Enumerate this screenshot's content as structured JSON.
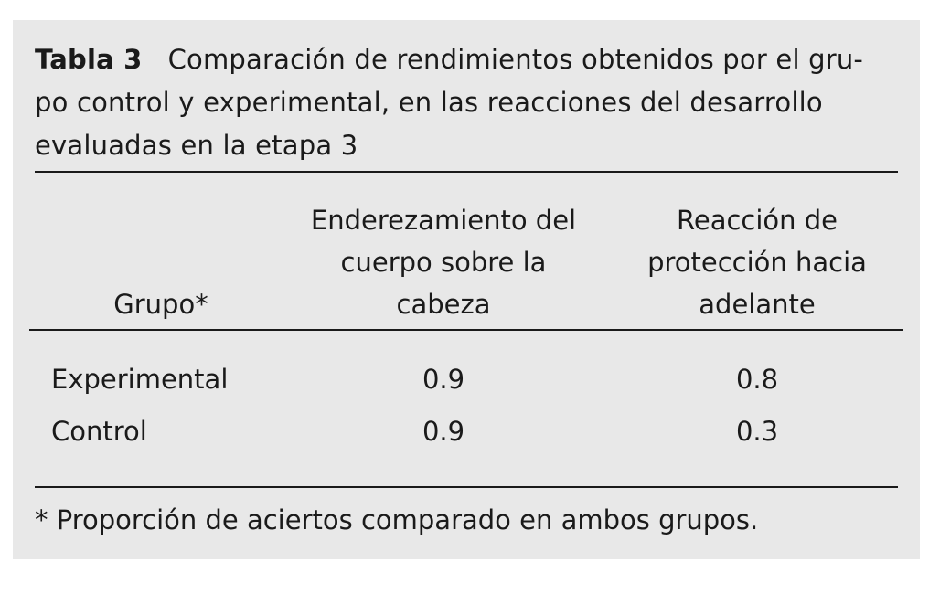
{
  "table": {
    "label": "Tabla 3",
    "caption": "Comparación de rendimientos obtenidos por el gru-po control y experimental, en las reacciones del desarrollo evaluadas en la etapa 3",
    "caption_lines": [
      "Comparación de rendimientos obtenidos por el gru-",
      "po control y experimental, en las reacciones del desarrollo",
      "evaluadas en la etapa 3"
    ],
    "columns": [
      {
        "lines": [
          "Grupo*"
        ]
      },
      {
        "lines": [
          "Enderezamiento del",
          "cuerpo sobre la",
          "cabeza"
        ]
      },
      {
        "lines": [
          "Reacción de",
          "protección hacia",
          "adelante"
        ]
      }
    ],
    "rows": [
      {
        "group": "Experimental",
        "enderezamiento": "0.9",
        "proteccion": "0.8"
      },
      {
        "group": "Control",
        "enderezamiento": "0.9",
        "proteccion": "0.3"
      }
    ],
    "footnote": "* Proporción de aciertos comparado en ambos grupos."
  }
}
